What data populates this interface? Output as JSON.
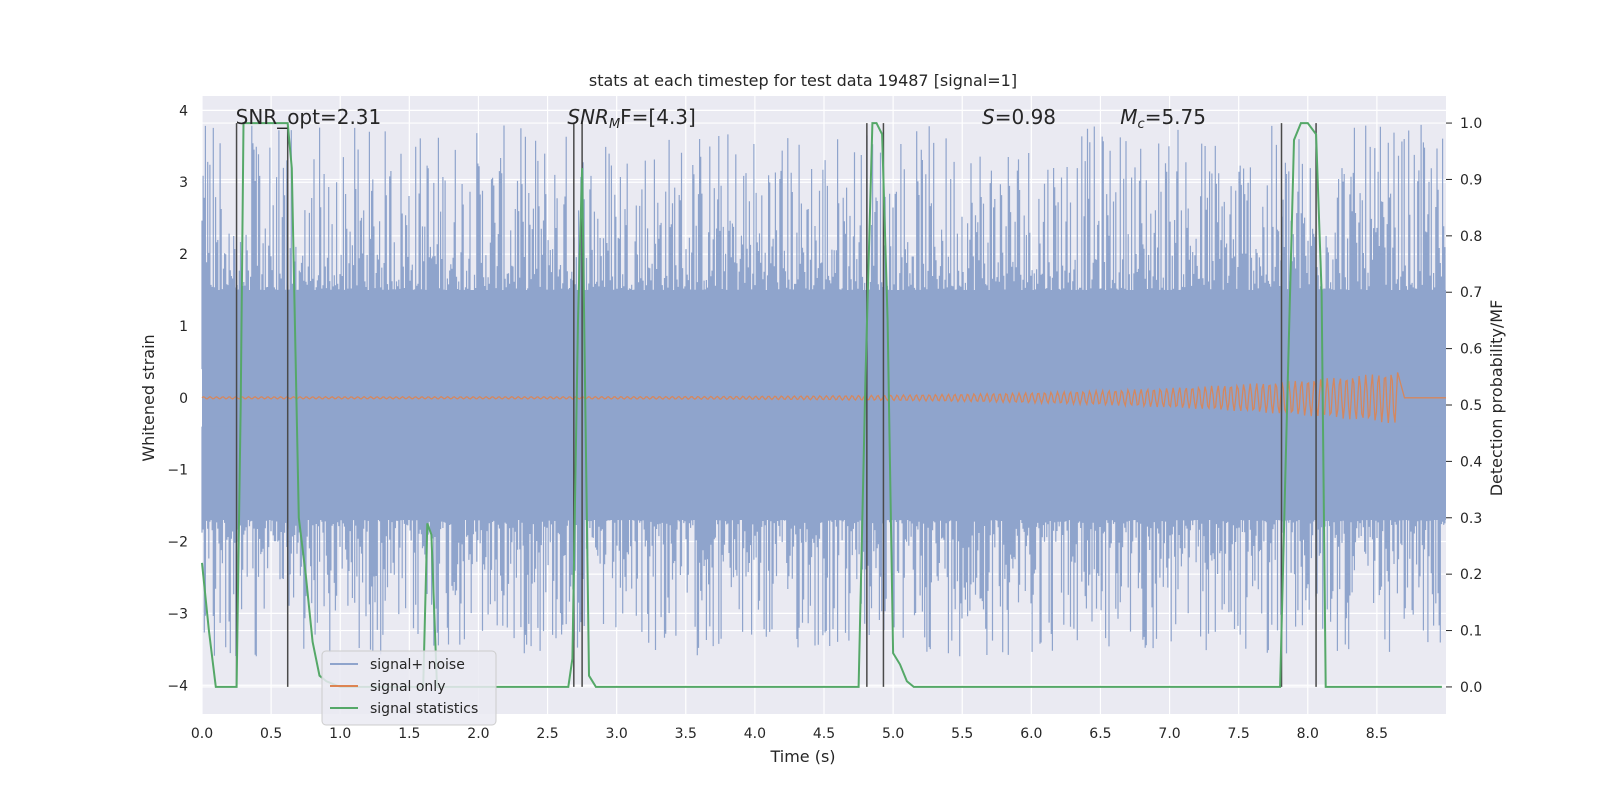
{
  "chart_data": {
    "type": "line",
    "title": "stats at each timestep for test data 19487 [signal=1]",
    "xlabel": "Time (s)",
    "ylabel": "Whitened strain",
    "ylabel_right": "Detection probability/MF",
    "xlim": [
      0.0,
      9.0
    ],
    "ylim": [
      -4.4,
      4.2
    ],
    "ylim_right": [
      -0.048,
      1.048
    ],
    "x_ticks": [
      0.0,
      0.5,
      1.0,
      1.5,
      2.0,
      2.5,
      3.0,
      3.5,
      4.0,
      4.5,
      5.0,
      5.5,
      6.0,
      6.5,
      7.0,
      7.5,
      8.0,
      8.5
    ],
    "x_tick_labels": [
      "0.0",
      "0.5",
      "1.0",
      "1.5",
      "2.0",
      "2.5",
      "3.0",
      "3.5",
      "4.0",
      "4.5",
      "5.0",
      "5.5",
      "6.0",
      "6.5",
      "7.0",
      "7.5",
      "8.0",
      "8.5"
    ],
    "y_ticks": [
      4,
      3,
      2,
      1,
      0,
      -1,
      -2,
      -3,
      -4
    ],
    "y_tick_labels": [
      "4",
      "3",
      "2",
      "1",
      "0",
      "−1",
      "−2",
      "−3",
      "−4"
    ],
    "y_right_ticks": [
      1.0,
      0.9,
      0.8,
      0.7,
      0.6,
      0.5,
      0.4,
      0.3,
      0.2,
      0.1,
      0.0
    ],
    "y_right_tick_labels": [
      "1.0",
      "0.9",
      "0.8",
      "0.7",
      "0.6",
      "0.5",
      "0.4",
      "0.3",
      "0.2",
      "0.1",
      "0.0"
    ],
    "annotations": [
      {
        "key": "snr_opt",
        "text": "SNR_opt=2.31",
        "x": 0.2
      },
      {
        "key": "snr_mf_pre",
        "text": "SNR",
        "sub": "M",
        "post": "F=[4.3]",
        "x": 2.6
      },
      {
        "key": "s",
        "text": "S",
        "post": "=0.98",
        "x": 5.6
      },
      {
        "key": "mc",
        "text": "M",
        "sub": "c",
        "post": "=5.75",
        "x": 6.6
      }
    ],
    "series": [
      {
        "name": "signal+ noise",
        "color": "#8fa4cc",
        "style": "noise band",
        "x_range": [
          0.0,
          9.0
        ],
        "core_band": [
          -1.7,
          1.5
        ],
        "spike_range": [
          -3.6,
          3.8
        ]
      },
      {
        "name": "signal only",
        "color": "#dd8452",
        "style": "chirp",
        "start": 0.0,
        "end": 8.65,
        "peak_amplitude": 0.35
      },
      {
        "name": "signal statistics",
        "color": "#55a868",
        "axis": "right",
        "x": [
          0.0,
          0.05,
          0.1,
          0.2,
          0.25,
          0.28,
          0.3,
          0.33,
          0.4,
          0.5,
          0.6,
          0.62,
          0.65,
          0.7,
          0.75,
          0.8,
          0.85,
          0.9,
          1.0,
          1.2,
          1.5,
          1.6,
          1.63,
          1.66,
          1.7,
          2.0,
          2.5,
          2.65,
          2.68,
          2.72,
          2.75,
          2.8,
          2.85,
          3.0,
          4.0,
          4.5,
          4.75,
          4.8,
          4.85,
          4.88,
          4.92,
          4.96,
          5.0,
          5.05,
          5.1,
          5.15,
          6.0,
          7.0,
          7.8,
          7.84,
          7.9,
          7.95,
          8.0,
          8.06,
          8.1,
          8.13,
          8.2,
          8.5,
          8.97
        ],
        "y": [
          0.22,
          0.1,
          0.0,
          0.0,
          0.0,
          0.5,
          1.0,
          1.0,
          1.0,
          1.0,
          1.0,
          1.0,
          0.92,
          0.3,
          0.2,
          0.08,
          0.02,
          0.01,
          0.0,
          0.0,
          0.0,
          0.0,
          0.29,
          0.27,
          0.0,
          0.0,
          0.0,
          0.0,
          0.05,
          0.65,
          0.92,
          0.02,
          0.0,
          0.0,
          0.0,
          0.0,
          0.0,
          0.55,
          1.0,
          1.0,
          0.98,
          0.65,
          0.06,
          0.04,
          0.01,
          0.0,
          0.0,
          0.0,
          0.0,
          0.4,
          0.97,
          1.0,
          1.0,
          0.98,
          0.7,
          0.0,
          0.0,
          0.0,
          0.0
        ]
      }
    ],
    "vertical_markers": [
      0.25,
      0.62,
      2.69,
      2.75,
      4.81,
      4.93,
      7.81,
      8.06
    ],
    "vertical_marker_color": "#4a4a4a",
    "legend_position": "lower-left"
  },
  "colors": {
    "plot_background": "#eaeaf2",
    "grid": "#ffffff",
    "text": "#262626"
  }
}
